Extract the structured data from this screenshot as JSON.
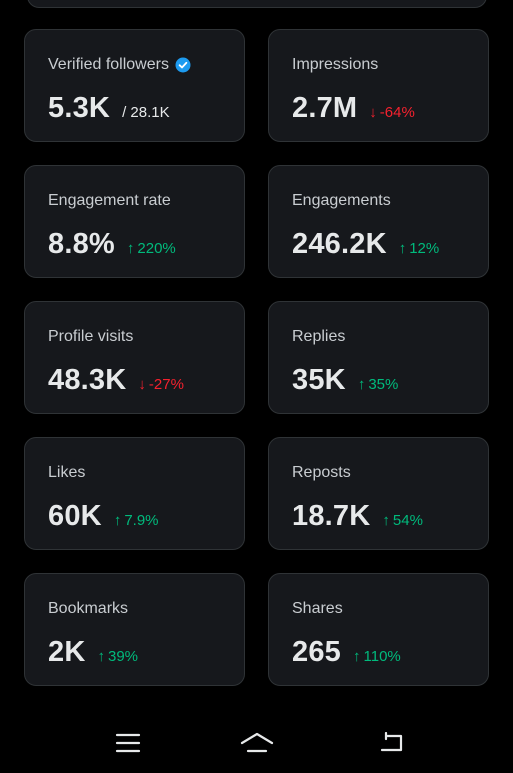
{
  "cards": [
    {
      "label": "Verified followers",
      "value": "5.3K",
      "sub": "/ 28.1K",
      "verified_icon": "verified-badge-icon",
      "badge_color": "#1d9bf0"
    },
    {
      "label": "Impressions",
      "value": "2.7M",
      "change": "-64%",
      "direction": "down"
    },
    {
      "label": "Engagement rate",
      "value": "8.8%",
      "change": "220%",
      "direction": "up"
    },
    {
      "label": "Engagements",
      "value": "246.2K",
      "change": "12%",
      "direction": "up"
    },
    {
      "label": "Profile visits",
      "value": "48.3K",
      "change": "-27%",
      "direction": "down"
    },
    {
      "label": "Replies",
      "value": "35K",
      "change": "35%",
      "direction": "up"
    },
    {
      "label": "Likes",
      "value": "60K",
      "change": "7.9%",
      "direction": "up"
    },
    {
      "label": "Reposts",
      "value": "18.7K",
      "change": "54%",
      "direction": "up"
    },
    {
      "label": "Bookmarks",
      "value": "2K",
      "change": "39%",
      "direction": "up"
    },
    {
      "label": "Shares",
      "value": "265",
      "change": "110%",
      "direction": "up"
    }
  ],
  "arrows": {
    "up": "↑",
    "down": "↓"
  },
  "colors": {
    "up": "#00ba7c",
    "down": "#f4212e",
    "card_bg": "#16181c",
    "card_border": "#2f3336"
  },
  "nav": [
    {
      "icon": "menu-icon"
    },
    {
      "icon": "home-icon"
    },
    {
      "icon": "back-icon"
    }
  ]
}
